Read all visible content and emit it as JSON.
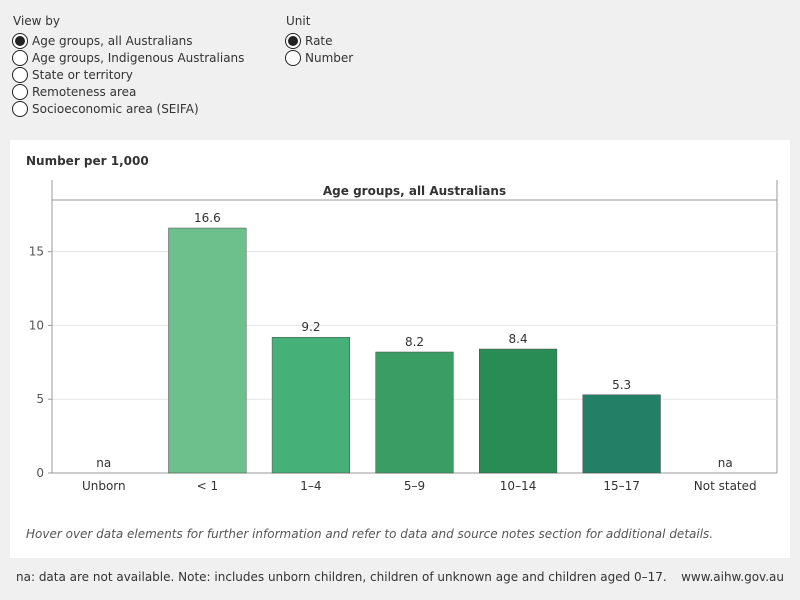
{
  "controls": {
    "view_by": {
      "title": "View by",
      "options": [
        {
          "label": "Age groups, all Australians",
          "selected": true
        },
        {
          "label": "Age groups, Indigenous Australians",
          "selected": false
        },
        {
          "label": "State or territory",
          "selected": false
        },
        {
          "label": "Remoteness area",
          "selected": false
        },
        {
          "label": "Socioeconomic area (SEIFA)",
          "selected": false
        }
      ]
    },
    "unit": {
      "title": "Unit",
      "options": [
        {
          "label": "Rate",
          "selected": true
        },
        {
          "label": "Number",
          "selected": false
        }
      ]
    }
  },
  "chart_header": {
    "subtitle": "Number per 1,000"
  },
  "chart_data": {
    "type": "bar",
    "title": "Age groups, all Australians",
    "xlabel": "",
    "ylabel": "Number per 1,000",
    "categories": [
      "Unborn",
      "< 1",
      "1–4",
      "5–9",
      "10–14",
      "15–17",
      "Not stated"
    ],
    "values": [
      null,
      16.6,
      9.2,
      8.2,
      8.4,
      5.3,
      null
    ],
    "value_labels": [
      "na",
      "16.6",
      "9.2",
      "8.2",
      "8.4",
      "5.3",
      "na"
    ],
    "bar_colors": [
      "#6dbf8c",
      "#6dbf8c",
      "#45b077",
      "#3a9e64",
      "#2a8c55",
      "#237f66",
      "#237f66"
    ],
    "yticks": [
      0,
      5,
      10,
      15
    ],
    "ylim": [
      0,
      18.5
    ],
    "grid": true,
    "legend": "none"
  },
  "notes": {
    "hover": "Hover over data elements for further information and refer to data and source notes section for additional details.",
    "footer": "na: data are not available. Note: includes unborn children, children of unknown age and children aged 0–17.",
    "site": "www.aihw.gov.au"
  }
}
